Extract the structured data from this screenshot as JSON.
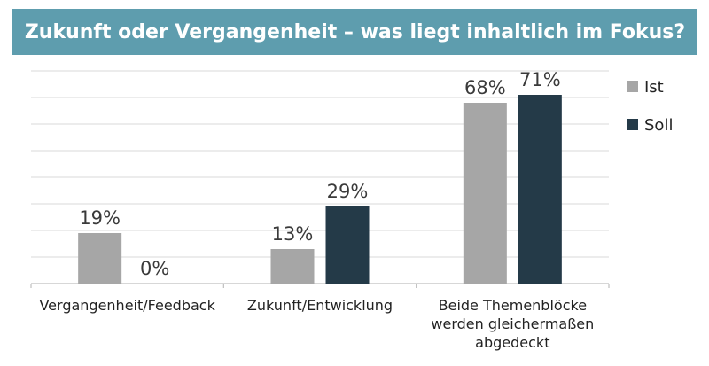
{
  "title": "Zukunft oder Vergangenheit – was liegt inhaltlich im Fokus?",
  "colors": {
    "title_bg": "#5e9dae",
    "grid": "#d9d9d9",
    "axis": "#bfbfbf"
  },
  "chart_data": {
    "type": "bar",
    "title": "Zukunft oder Vergangenheit – was liegt inhaltlich im Fokus?",
    "categories": [
      [
        "Vergangenheit/Feedback"
      ],
      [
        "Zukunft/Entwicklung"
      ],
      [
        "Beide Themenblöcke",
        "werden gleichermaßen",
        "abgedeckt"
      ]
    ],
    "series": [
      {
        "name": "Ist",
        "color": "#a6a6a6",
        "values": [
          19,
          13,
          68
        ],
        "labels": [
          "19%",
          "13%",
          "68%"
        ]
      },
      {
        "name": "Soll",
        "color": "#243a48",
        "values": [
          0,
          29,
          71
        ],
        "labels": [
          "0%",
          "29%",
          "71%"
        ]
      }
    ],
    "ylim": [
      0,
      80
    ],
    "grid": true,
    "legend_position": "right"
  }
}
